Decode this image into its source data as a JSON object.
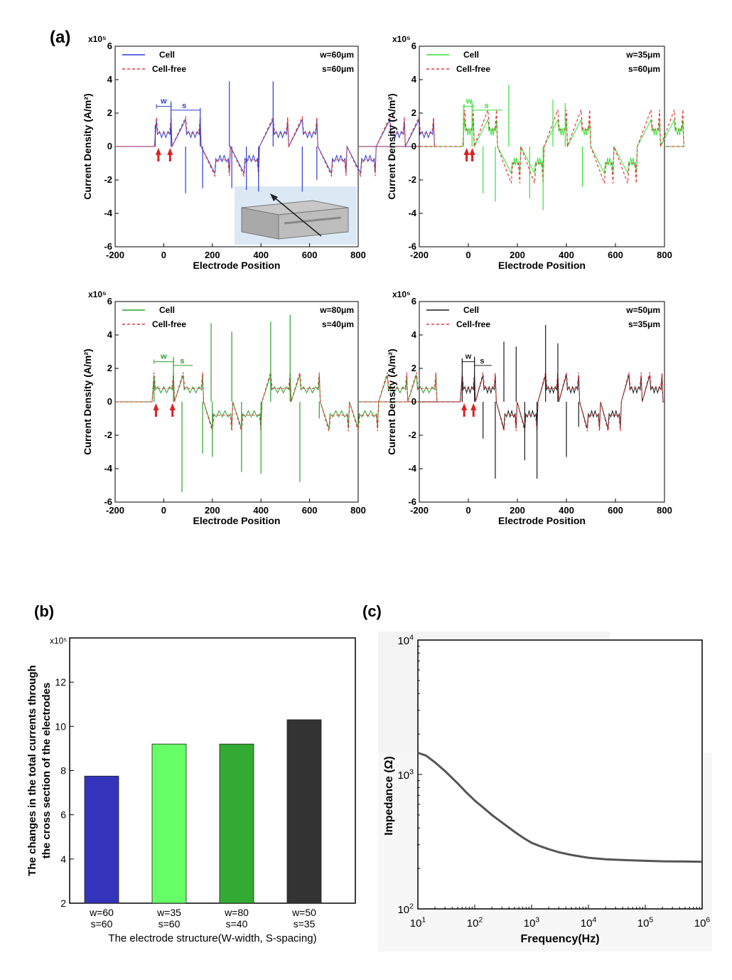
{
  "panels": {
    "a": "(a)",
    "b": "(b)",
    "c": "(c)"
  },
  "chart_data": [
    {
      "id": "a1",
      "type": "line",
      "xlabel": "Electrode Position",
      "ylabel": "Current Density (A/m²)",
      "y_multiplier": "x10⁵",
      "xlim": [
        -200,
        800
      ],
      "ylim": [
        -6,
        6
      ],
      "xticks": [
        -200,
        0,
        200,
        400,
        600,
        800
      ],
      "yticks": [
        -6,
        -4,
        -2,
        0,
        2,
        4,
        6
      ],
      "legend": [
        {
          "name": "Cell",
          "color": "#2a3cd6"
        },
        {
          "name": "Cell-free",
          "color": "#e23a3a"
        }
      ],
      "annotations": [
        "w=60μm",
        "s=60μm"
      ],
      "dim_labels": [
        "w",
        "s"
      ],
      "inset": "3D electrode channel model",
      "electrodes": {
        "start": -30,
        "width": 60,
        "spacing": 60,
        "count": 10
      },
      "series": [
        {
          "name": "Cell",
          "peaks": [
            [
              -35,
              1.3
            ],
            [
              30,
              2.7
            ],
            [
              90,
              -2.8
            ],
            [
              150,
              2.3
            ],
            [
              160,
              -2.5
            ],
            [
              270,
              3.9
            ],
            [
              280,
              -2.5
            ],
            [
              340,
              -2.6
            ],
            [
              390,
              -2.7
            ],
            [
              450,
              3.9
            ],
            [
              570,
              -2.7
            ],
            [
              630,
              -2.0
            ]
          ]
        },
        {
          "name": "Cell-free",
          "plateau": 0.8
        }
      ]
    },
    {
      "id": "a2",
      "type": "line",
      "xlabel": "Electrode Position",
      "ylabel": "Current Density (A/m²)",
      "y_multiplier": "x10⁵",
      "xlim": [
        -200,
        800
      ],
      "ylim": [
        -6,
        6
      ],
      "xticks": [
        -200,
        0,
        200,
        400,
        600,
        800
      ],
      "yticks": [
        -6,
        -4,
        -2,
        0,
        2,
        4,
        6
      ],
      "legend": [
        {
          "name": "Cell",
          "color": "#35e035"
        },
        {
          "name": "Cell-free",
          "color": "#e23a3a"
        }
      ],
      "annotations": [
        "w=35μm",
        "s=60μm"
      ],
      "dim_labels": [
        "w",
        "s"
      ],
      "electrodes": {
        "start": -15,
        "width": 35,
        "spacing": 60,
        "count": 10
      },
      "series": [
        {
          "name": "Cell",
          "peaks": [
            [
              -20,
              2.5
            ],
            [
              15,
              2.7
            ],
            [
              60,
              -2.8
            ],
            [
              110,
              -3.3
            ],
            [
              165,
              3.7
            ],
            [
              250,
              -3.1
            ],
            [
              305,
              -3.8
            ],
            [
              345,
              2.8
            ],
            [
              395,
              2.6
            ],
            [
              465,
              -2.4
            ]
          ]
        },
        {
          "name": "Cell-free",
          "plateau": 1.0
        }
      ]
    },
    {
      "id": "a3",
      "type": "line",
      "xlabel": "Electrode Position",
      "ylabel": "Current Density (A/m²)",
      "y_multiplier": "x10⁵",
      "xlim": [
        -200,
        800
      ],
      "ylim": [
        -6,
        6
      ],
      "xticks": [
        -200,
        0,
        200,
        400,
        600,
        800
      ],
      "yticks": [
        -6,
        -4,
        -2,
        0,
        2,
        4,
        6
      ],
      "legend": [
        {
          "name": "Cell",
          "color": "#2aa02a"
        },
        {
          "name": "Cell-free",
          "color": "#e23a3a"
        }
      ],
      "annotations": [
        "w=80μm",
        "s=40μm"
      ],
      "dim_labels": [
        "w",
        "s"
      ],
      "electrodes": {
        "start": -40,
        "width": 80,
        "spacing": 40,
        "count": 10
      },
      "series": [
        {
          "name": "Cell",
          "peaks": [
            [
              -40,
              1.5
            ],
            [
              40,
              2.7
            ],
            [
              75,
              -5.4
            ],
            [
              160,
              -3.1
            ],
            [
              195,
              4.7
            ],
            [
              200,
              -3.3
            ],
            [
              280,
              4.2
            ],
            [
              320,
              -4.2
            ],
            [
              400,
              -4.3
            ],
            [
              440,
              4.8
            ],
            [
              520,
              5.2
            ],
            [
              560,
              -4.8
            ],
            [
              640,
              -1.0
            ]
          ]
        },
        {
          "name": "Cell-free",
          "plateau": 0.8
        }
      ]
    },
    {
      "id": "a4",
      "type": "line",
      "xlabel": "Electrode Position",
      "ylabel": "Current Density (A/m²)",
      "y_multiplier": "x10⁵",
      "xlim": [
        -200,
        800
      ],
      "ylim": [
        -6,
        6
      ],
      "xticks": [
        -200,
        0,
        200,
        400,
        600,
        800
      ],
      "yticks": [
        -6,
        -4,
        -2,
        0,
        2,
        4,
        6
      ],
      "legend": [
        {
          "name": "Cell",
          "color": "#1a1a1a"
        },
        {
          "name": "Cell-free",
          "color": "#e23a3a"
        }
      ],
      "annotations": [
        "w=50μm",
        "s=35μm"
      ],
      "dim_labels": [
        "w",
        "s"
      ],
      "electrodes": {
        "start": -25,
        "width": 50,
        "spacing": 35,
        "count": 10
      },
      "series": [
        {
          "name": "Cell",
          "peaks": [
            [
              -25,
              2.6
            ],
            [
              25,
              2.7
            ],
            [
              60,
              -2.2
            ],
            [
              110,
              -4.6
            ],
            [
              145,
              3.6
            ],
            [
              195,
              3.3
            ],
            [
              230,
              -3.5
            ],
            [
              280,
              -4.6
            ],
            [
              315,
              4.6
            ],
            [
              365,
              3.5
            ],
            [
              400,
              -3.3
            ],
            [
              450,
              -1.5
            ]
          ]
        },
        {
          "name": "Cell-free",
          "plateau": 0.8
        }
      ]
    },
    {
      "id": "b",
      "type": "bar",
      "xlabel": "The electrode structure(W-width, S-spacing)",
      "ylabel_lines": [
        "The changes in the total currents through",
        "the cross section of the electrodes"
      ],
      "y_multiplier": "x10⁵",
      "ylim": [
        2,
        14
      ],
      "yticks": [
        2,
        4,
        6,
        8,
        10,
        12
      ],
      "categories": [
        [
          "w=60",
          "s=60"
        ],
        [
          "w=35",
          "s=60"
        ],
        [
          "w=80",
          "s=40"
        ],
        [
          "w=50",
          "s=35"
        ]
      ],
      "values": [
        7.75,
        9.2,
        9.2,
        10.3
      ],
      "colors": [
        "#3333bb",
        "#66ff66",
        "#33aa33",
        "#333333"
      ]
    },
    {
      "id": "c",
      "type": "line",
      "xlabel": "Frequency(Hz)",
      "ylabel": "Impedance (Ω)",
      "x_scale": "log",
      "y_scale": "log",
      "xlim": [
        10,
        1000000
      ],
      "ylim": [
        100,
        10000
      ],
      "xticks": [
        {
          "base": "10",
          "exp": "1"
        },
        {
          "base": "10",
          "exp": "2"
        },
        {
          "base": "10",
          "exp": "3"
        },
        {
          "base": "10",
          "exp": "4"
        },
        {
          "base": "10",
          "exp": "5"
        },
        {
          "base": "10",
          "exp": "6"
        }
      ],
      "yticks": [
        {
          "base": "10",
          "exp": "2"
        },
        {
          "base": "10",
          "exp": "3"
        },
        {
          "base": "10",
          "exp": "4"
        }
      ],
      "x": [
        10,
        14,
        20,
        30,
        50,
        70,
        100,
        150,
        200,
        300,
        500,
        700,
        1000,
        1500,
        2000,
        3000,
        5000,
        7000,
        10000,
        20000,
        50000,
        100000,
        200000,
        500000,
        1000000
      ],
      "y": [
        1450,
        1380,
        1230,
        1060,
        860,
        740,
        640,
        555,
        500,
        440,
        375,
        340,
        310,
        290,
        278,
        264,
        252,
        246,
        240,
        234,
        230,
        228,
        226,
        225,
        224
      ],
      "color": "#555555"
    }
  ]
}
